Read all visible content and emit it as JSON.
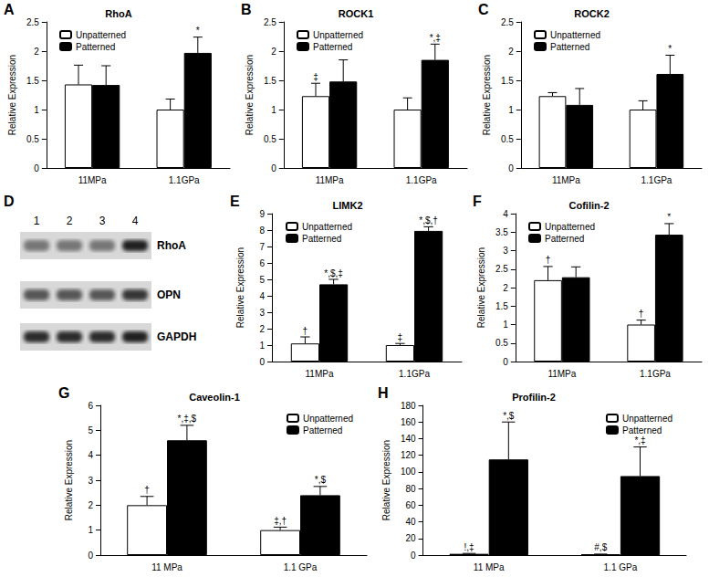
{
  "chart_data": [
    {
      "type": "bar",
      "panel": "A",
      "title": "RhoA",
      "categories": [
        "11MPa",
        "1.1GPa"
      ],
      "ylabel": "Relative Expression",
      "ylim": [
        0,
        2.5
      ],
      "yticks": [
        0,
        0.5,
        1,
        1.5,
        2,
        2.5
      ],
      "grid": false,
      "legend": "upper left",
      "series": [
        {
          "name": "Unpatterned",
          "color": "#ffffff",
          "values": [
            1.43,
            1.0
          ],
          "errors": [
            0.33,
            0.18
          ],
          "annotations": [
            null,
            null
          ]
        },
        {
          "name": "Patterned",
          "color": "#000000",
          "values": [
            1.42,
            1.97
          ],
          "errors": [
            0.33,
            0.27
          ],
          "annotations": [
            null,
            "*"
          ]
        }
      ]
    },
    {
      "type": "bar",
      "panel": "B",
      "title": "ROCK1",
      "categories": [
        "11MPa",
        "1.1GPa"
      ],
      "ylabel": "Relative Expression",
      "ylim": [
        0,
        2.5
      ],
      "yticks": [
        0,
        0.5,
        1,
        1.5,
        2,
        2.5
      ],
      "grid": false,
      "legend": "upper left",
      "series": [
        {
          "name": "Unpatterned",
          "color": "#ffffff",
          "values": [
            1.23,
            1.0
          ],
          "errors": [
            0.22,
            0.2
          ],
          "annotations": [
            "‡",
            null
          ]
        },
        {
          "name": "Patterned",
          "color": "#000000",
          "values": [
            1.48,
            1.85
          ],
          "errors": [
            0.37,
            0.27
          ],
          "annotations": [
            null,
            "*,‡"
          ]
        }
      ]
    },
    {
      "type": "bar",
      "panel": "C",
      "title": "ROCK2",
      "categories": [
        "11MPa",
        "1.1GPa"
      ],
      "ylabel": "Relative Expression",
      "ylim": [
        0,
        2.5
      ],
      "yticks": [
        0,
        0.5,
        1,
        1.5,
        2,
        2.5
      ],
      "grid": false,
      "legend": "upper left",
      "series": [
        {
          "name": "Unpatterned",
          "color": "#ffffff",
          "values": [
            1.23,
            1.0
          ],
          "errors": [
            0.06,
            0.15
          ],
          "annotations": [
            null,
            null
          ]
        },
        {
          "name": "Patterned",
          "color": "#000000",
          "values": [
            1.08,
            1.61
          ],
          "errors": [
            0.28,
            0.32
          ],
          "annotations": [
            null,
            "*"
          ]
        }
      ]
    },
    {
      "type": "bar",
      "panel": "E",
      "title": "LIMK2",
      "categories": [
        "11MPa",
        "1.1GPa"
      ],
      "ylabel": "Relative Expression",
      "ylim": [
        0,
        9
      ],
      "yticks": [
        0,
        1,
        2,
        3,
        4,
        5,
        6,
        7,
        8,
        9
      ],
      "grid": false,
      "legend": "upper left",
      "series": [
        {
          "name": "Unpatterned",
          "color": "#ffffff",
          "values": [
            1.1,
            1.0
          ],
          "errors": [
            0.4,
            0.1
          ],
          "annotations": [
            "†",
            "‡"
          ]
        },
        {
          "name": "Patterned",
          "color": "#000000",
          "values": [
            4.7,
            7.95
          ],
          "errors": [
            0.3,
            0.25
          ],
          "annotations": [
            "*,$,‡",
            "*,$,†"
          ]
        }
      ]
    },
    {
      "type": "bar",
      "panel": "F",
      "title": "Cofilin-2",
      "categories": [
        "11MPa",
        "1.1GPa"
      ],
      "ylabel": "Relative Expression",
      "ylim": [
        0,
        4
      ],
      "yticks": [
        0,
        0.5,
        1,
        1.5,
        2,
        2.5,
        3,
        3.5,
        4
      ],
      "grid": false,
      "legend": "upper left",
      "series": [
        {
          "name": "Unpatterned",
          "color": "#ffffff",
          "values": [
            2.2,
            1.0
          ],
          "errors": [
            0.37,
            0.12
          ],
          "annotations": [
            "†",
            "†"
          ]
        },
        {
          "name": "Patterned",
          "color": "#000000",
          "values": [
            2.28,
            3.43
          ],
          "errors": [
            0.28,
            0.3
          ],
          "annotations": [
            null,
            "*"
          ]
        }
      ]
    },
    {
      "type": "bar",
      "panel": "G",
      "title": "Caveolin-1",
      "categories": [
        "11 MPa",
        "1.1 GPa"
      ],
      "ylabel": "Relative Expression",
      "ylim": [
        0,
        6
      ],
      "yticks": [
        0,
        1,
        2,
        3,
        4,
        5,
        6
      ],
      "grid": false,
      "legend": "upper right",
      "series": [
        {
          "name": "Unpatterned",
          "color": "#ffffff",
          "values": [
            2.0,
            1.0
          ],
          "errors": [
            0.35,
            0.12
          ],
          "annotations": [
            "†",
            "‡,†"
          ]
        },
        {
          "name": "Patterned",
          "color": "#000000",
          "values": [
            4.6,
            2.4
          ],
          "errors": [
            0.6,
            0.35
          ],
          "annotations": [
            "*,‡,$",
            "*,$"
          ]
        }
      ]
    },
    {
      "type": "bar",
      "panel": "H",
      "title": "Profilin-2",
      "categories": [
        "11 MPa",
        "1.1 GPa"
      ],
      "ylabel": "Relative Expression",
      "ylim": [
        0,
        180
      ],
      "yticks": [
        0,
        20,
        40,
        60,
        80,
        100,
        120,
        140,
        160,
        180
      ],
      "grid": false,
      "legend": "upper right",
      "series": [
        {
          "name": "Unpatterned",
          "color": "#ffffff",
          "values": [
            1.5,
            1.0
          ],
          "errors": [
            0.5,
            0.2
          ],
          "annotations": [
            "!,‡",
            "#,$"
          ]
        },
        {
          "name": "Patterned",
          "color": "#000000",
          "values": [
            115,
            95
          ],
          "errors": [
            45,
            35
          ],
          "annotations": [
            "*,$",
            "*,‡"
          ]
        }
      ]
    }
  ],
  "blot": {
    "panel": "D",
    "lanes": [
      "1",
      "2",
      "3",
      "4"
    ],
    "bands": [
      "RhoA",
      "OPN",
      "GAPDH"
    ]
  }
}
